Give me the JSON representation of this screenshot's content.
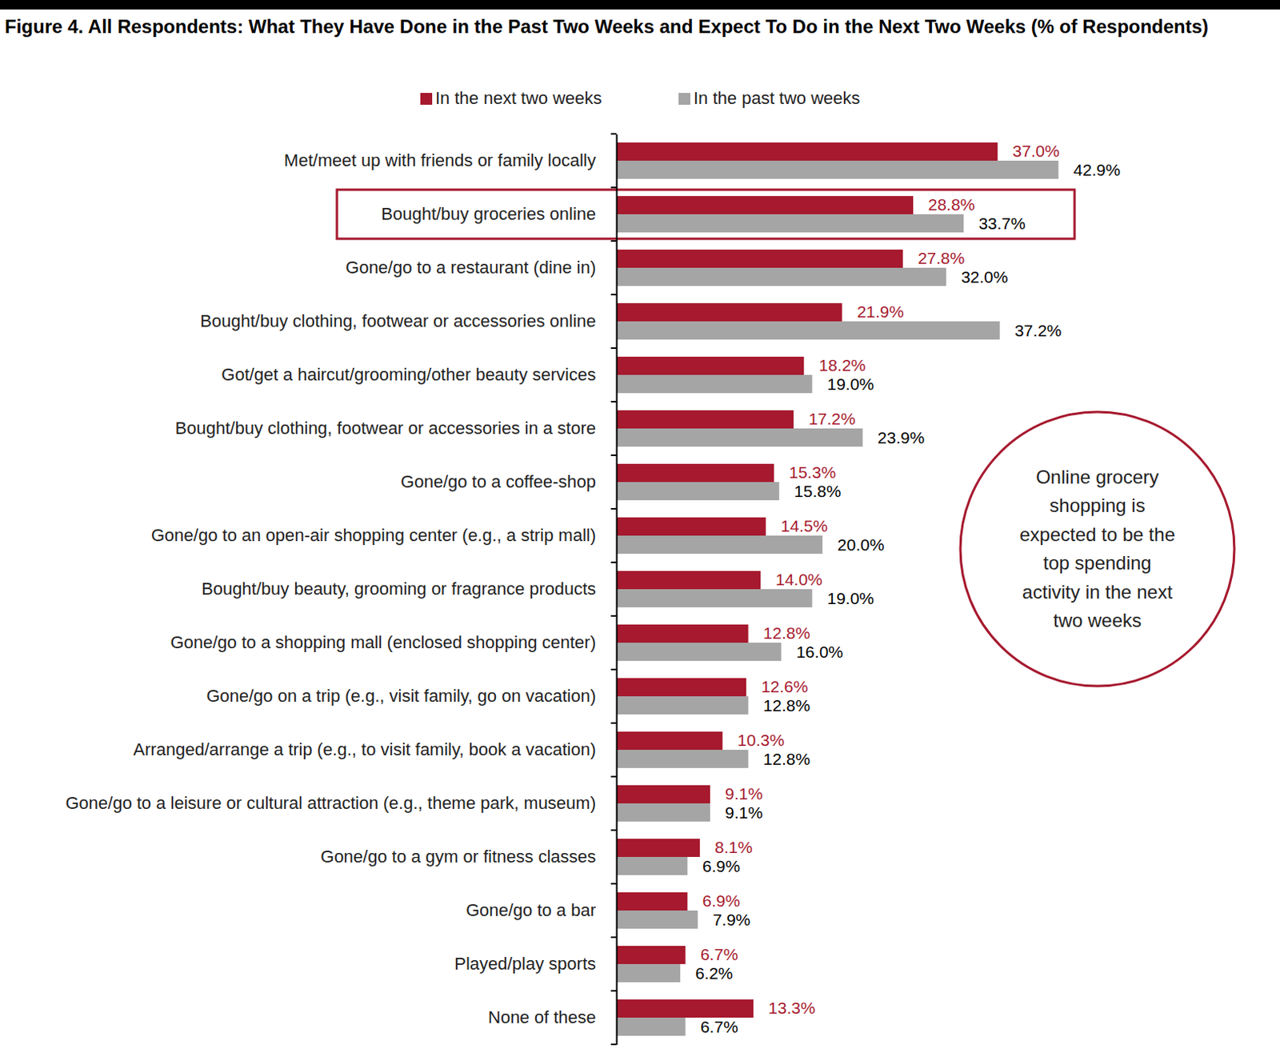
{
  "chart_data": {
    "type": "bar",
    "orientation": "horizontal",
    "title": "Figure 4. All Respondents: What They Have Done in the Past Two Weeks and Expect To Do in the Next Two Weeks (% of Respondents)",
    "categories": [
      "Met/meet up with friends or family locally",
      "Bought/buy groceries online",
      "Gone/go to a restaurant (dine in)",
      "Bought/buy clothing, footwear or accessories online",
      "Got/get a haircut/grooming/other beauty services",
      "Bought/buy clothing, footwear or accessories in a store",
      "Gone/go to a coffee-shop",
      "Gone/go to an open-air shopping center (e.g., a strip mall)",
      "Bought/buy beauty, grooming or fragrance products",
      "Gone/go to a shopping mall (enclosed shopping center)",
      "Gone/go on a trip (e.g., visit family, go on vacation)",
      "Arranged/arrange a trip (e.g., to visit family, book a vacation)",
      "Gone/go to a leisure or cultural attraction (e.g., theme park, museum)",
      "Gone/go to a gym or fitness classes",
      "Gone/go to a bar",
      "Played/play sports",
      "None of these"
    ],
    "series": [
      {
        "name": "In the next two weeks",
        "color": "#a6192e",
        "values": [
          37.0,
          28.8,
          27.8,
          21.9,
          18.2,
          17.2,
          15.3,
          14.5,
          14.0,
          12.8,
          12.6,
          10.3,
          9.1,
          8.1,
          6.9,
          6.7,
          13.3
        ],
        "value_labels": [
          "37.0%",
          "28.8%",
          "27.8%",
          "21.9%",
          "18.2%",
          "17.2%",
          "15.3%",
          "14.5%",
          "14.0%",
          "12.8%",
          "12.6%",
          "10.3%",
          "9.1%",
          "8.1%",
          "6.9%",
          "6.7%",
          "13.3%"
        ]
      },
      {
        "name": "In the past two weeks",
        "color": "#a5a5a5",
        "values": [
          42.9,
          33.7,
          32.0,
          37.2,
          19.0,
          23.9,
          15.8,
          20.0,
          19.0,
          16.0,
          12.8,
          12.8,
          9.1,
          6.9,
          7.9,
          6.2,
          6.7
        ],
        "value_labels": [
          "42.9%",
          "33.7%",
          "32.0%",
          "37.2%",
          "19.0%",
          "23.9%",
          "15.8%",
          "20.0%",
          "19.0%",
          "16.0%",
          "12.8%",
          "12.8%",
          "9.1%",
          "6.9%",
          "7.9%",
          "6.2%",
          "6.7%"
        ]
      }
    ],
    "xlim": [
      0,
      50
    ],
    "data_labels": true,
    "tick_labels": "y",
    "legend": "top",
    "annotations": [
      {
        "text": "Online grocery shopping is expected to be the top spending activity in the next two weeks",
        "target": "Bought/buy groceries online"
      }
    ]
  }
}
